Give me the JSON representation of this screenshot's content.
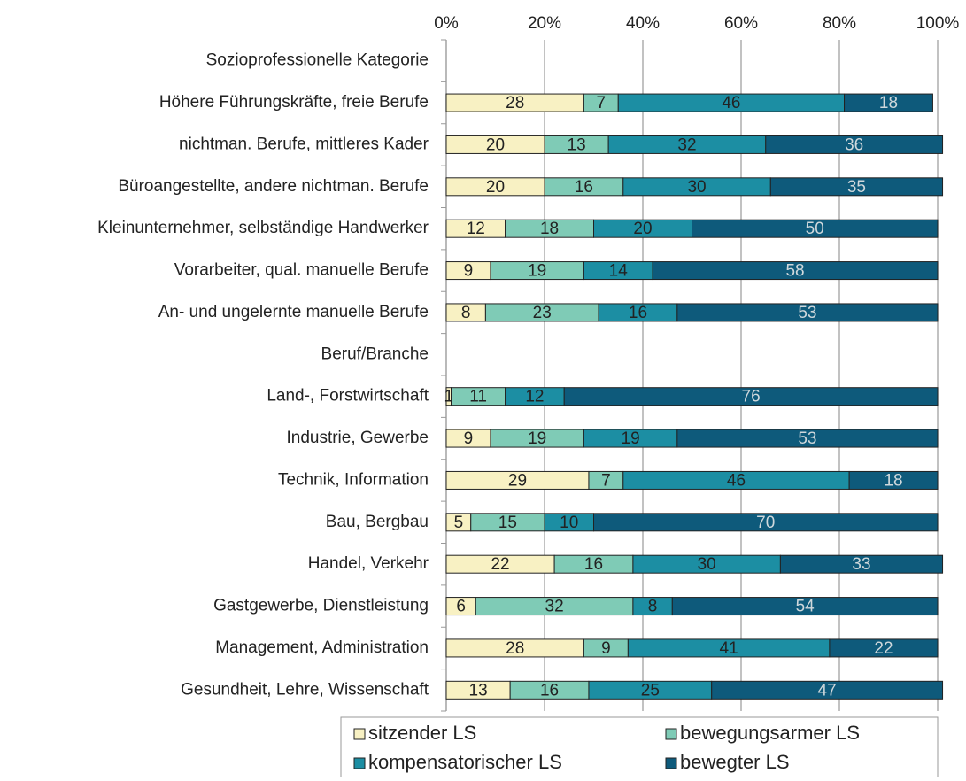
{
  "chart_data": {
    "type": "stacked_barh",
    "categories": [
      "Sozioprofessionelle Kategorie",
      "Höhere Führungskräfte, freie Berufe",
      "nichtman. Berufe, mittleres Kader",
      "Büroangestellte, andere nichtman. Berufe",
      "Kleinunternehmer, selbständige Handwerker",
      "Vorarbeiter, qual. manuelle Berufe",
      "An- und ungelernte manuelle Berufe",
      "Beruf/Branche",
      "Land-, Forstwirtschaft",
      "Industrie, Gewerbe",
      "Technik, Information",
      "Bau, Bergbau",
      "Handel, Verkehr",
      "Gastgewerbe, Dienstleistung",
      "Management, Administration",
      "Gesundheit, Lehre, Wissenschaft"
    ],
    "series": [
      {
        "name": "sitzender LS",
        "color": "#f8f1c3",
        "values": [
          null,
          28,
          20,
          20,
          12,
          9,
          8,
          null,
          1,
          9,
          29,
          5,
          22,
          6,
          28,
          13
        ]
      },
      {
        "name": "bewegungsarmer LS",
        "color": "#7fcbb6",
        "values": [
          null,
          7,
          13,
          16,
          18,
          19,
          23,
          null,
          11,
          19,
          7,
          15,
          16,
          32,
          9,
          16
        ]
      },
      {
        "name": "kompensatorischer LS",
        "color": "#1c8ea3",
        "values": [
          null,
          46,
          32,
          30,
          20,
          14,
          16,
          null,
          12,
          19,
          46,
          10,
          30,
          8,
          41,
          25
        ]
      },
      {
        "name": "bewegter LS",
        "color": "#0e5a7b",
        "values": [
          null,
          18,
          36,
          35,
          50,
          58,
          53,
          null,
          76,
          53,
          18,
          70,
          33,
          54,
          22,
          47
        ]
      }
    ],
    "xlim": [
      0,
      100
    ],
    "xticks": [
      {
        "value": 0,
        "label": "0%"
      },
      {
        "value": 20,
        "label": "20%"
      },
      {
        "value": 40,
        "label": "40%"
      },
      {
        "value": 60,
        "label": "60%"
      },
      {
        "value": 80,
        "label": "80%"
      },
      {
        "value": 100,
        "label": "100%"
      }
    ],
    "grid": true,
    "legend": "bottom"
  }
}
